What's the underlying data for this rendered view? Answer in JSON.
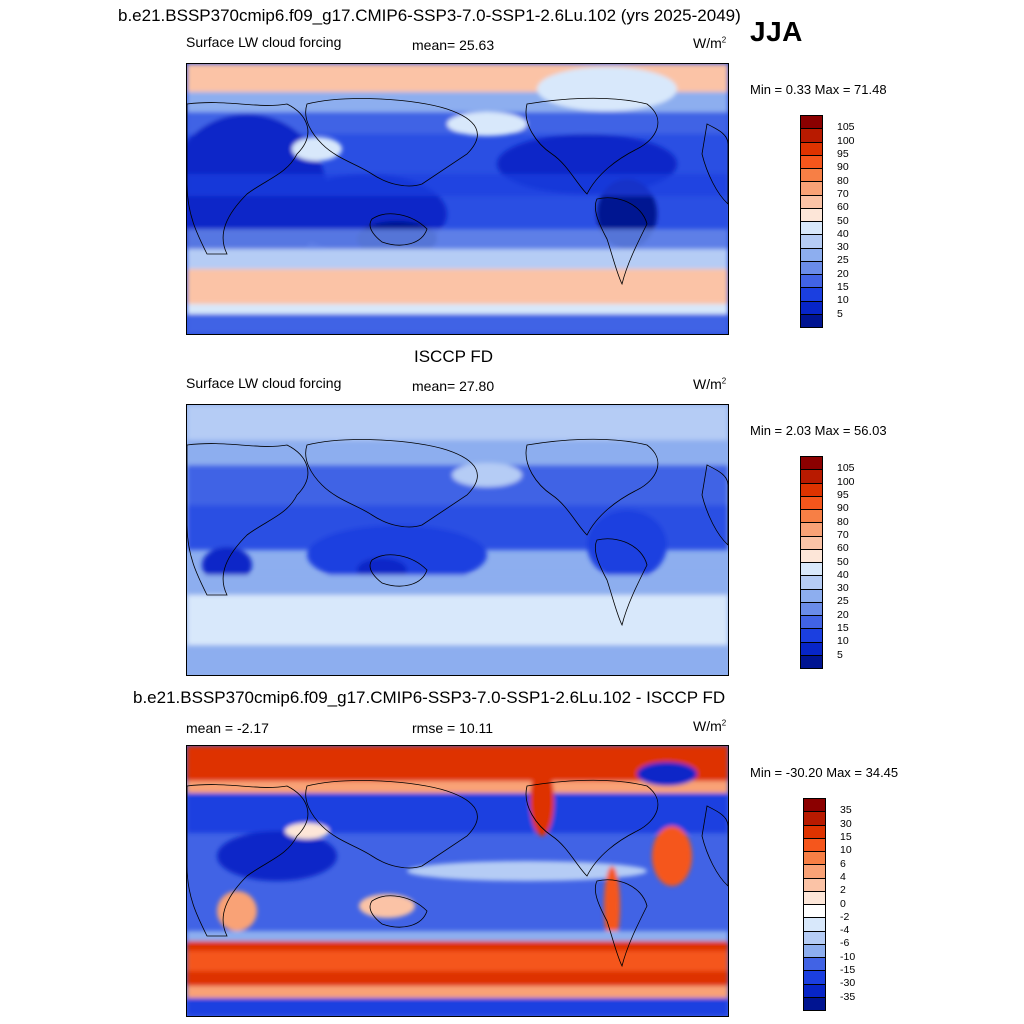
{
  "main_title": "b.e21.BSSP370cmip6.f09_g17.CMIP6-SSP3-7.0-SSP1-2.6Lu.102 (yrs 2025-2049)",
  "season": "JJA",
  "panels": [
    {
      "id": "model",
      "heading": "",
      "left_label": "Surface LW cloud forcing",
      "center_label": "mean=  25.63",
      "units": "W/m",
      "units_sup": "2",
      "minmax": "Min =   0.33 Max =  71.48"
    },
    {
      "id": "obs",
      "heading": "ISCCP FD",
      "left_label": "Surface LW cloud forcing",
      "center_label": "mean=  27.80",
      "units": "W/m",
      "units_sup": "2",
      "minmax": "Min =   2.03 Max =  56.03"
    },
    {
      "id": "diff",
      "heading": "b.e21.BSSP370cmip6.f09_g17.CMIP6-SSP3-7.0-SSP1-2.6Lu.102 - ISCCP FD",
      "left_label": "mean =  -2.17",
      "center_label": "rmse =  10.11",
      "units": "W/m",
      "units_sup": "2",
      "minmax": "Min = -30.20 Max =  34.45"
    }
  ],
  "colorbar_abs": {
    "labels": [
      "105",
      "100",
      "95",
      "90",
      "80",
      "70",
      "60",
      "50",
      "40",
      "30",
      "25",
      "20",
      "15",
      "10",
      "5"
    ],
    "colors": [
      "#8b0000",
      "#b81a00",
      "#de3300",
      "#f5561c",
      "#f77f45",
      "#f9a276",
      "#fbc3a6",
      "#fde6d8",
      "#d8e8fb",
      "#b5ccf5",
      "#8daeef",
      "#6a8ce9",
      "#4163e5",
      "#1b3fe0",
      "#0725c8",
      "#001491"
    ]
  },
  "colorbar_diff": {
    "labels": [
      "35",
      "30",
      "15",
      "10",
      "6",
      "4",
      "2",
      "0",
      "-2",
      "-4",
      "-6",
      "-10",
      "-15",
      "-30",
      "-35"
    ],
    "colors": [
      "#8b0000",
      "#b81a00",
      "#de3300",
      "#f5561c",
      "#f77f45",
      "#f9a276",
      "#fbc3a6",
      "#fde6d8",
      "#ffffff",
      "#d8e8fb",
      "#b5ccf5",
      "#8daeef",
      "#4163e5",
      "#1b3fe0",
      "#0725c8",
      "#001491"
    ]
  }
}
